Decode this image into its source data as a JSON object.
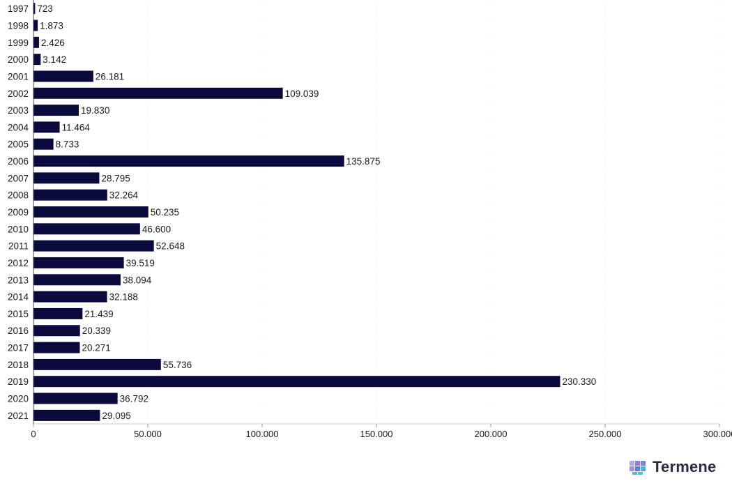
{
  "chart_data": {
    "type": "bar",
    "orientation": "horizontal",
    "categories": [
      "1997",
      "1998",
      "1999",
      "2000",
      "2001",
      "2002",
      "2003",
      "2004",
      "2005",
      "2006",
      "2007",
      "2008",
      "2009",
      "2010",
      "2011",
      "2012",
      "2013",
      "2014",
      "2015",
      "2016",
      "2017",
      "2018",
      "2019",
      "2020",
      "2021"
    ],
    "values": [
      723,
      1873,
      2426,
      3142,
      26181,
      109039,
      19830,
      11464,
      8733,
      135875,
      28795,
      32264,
      50235,
      46600,
      52648,
      39519,
      38094,
      32188,
      21439,
      20339,
      20271,
      55736,
      230330,
      36792,
      29095
    ],
    "value_labels": [
      "723",
      "1.873",
      "2.426",
      "3.142",
      "26.181",
      "109.039",
      "19.830",
      "11.464",
      "8.733",
      "135.875",
      "28.795",
      "32.264",
      "50.235",
      "46.600",
      "52.648",
      "39.519",
      "38.094",
      "32.188",
      "21.439",
      "20.339",
      "20.271",
      "55.736",
      "230.330",
      "36.792",
      "29.095"
    ],
    "xlim": [
      0,
      300000
    ],
    "x_ticks": [
      0,
      50000,
      100000,
      150000,
      200000,
      250000,
      300000
    ],
    "x_tick_labels": [
      "0",
      "50.000",
      "100.000",
      "150.000",
      "200.000",
      "250.000",
      "300.000"
    ],
    "grid": true,
    "bar_color": "#0b0a3d",
    "title": "",
    "xlabel": "",
    "ylabel": ""
  },
  "logo": {
    "text": "Termene",
    "icon": "cube-grid-icon"
  }
}
